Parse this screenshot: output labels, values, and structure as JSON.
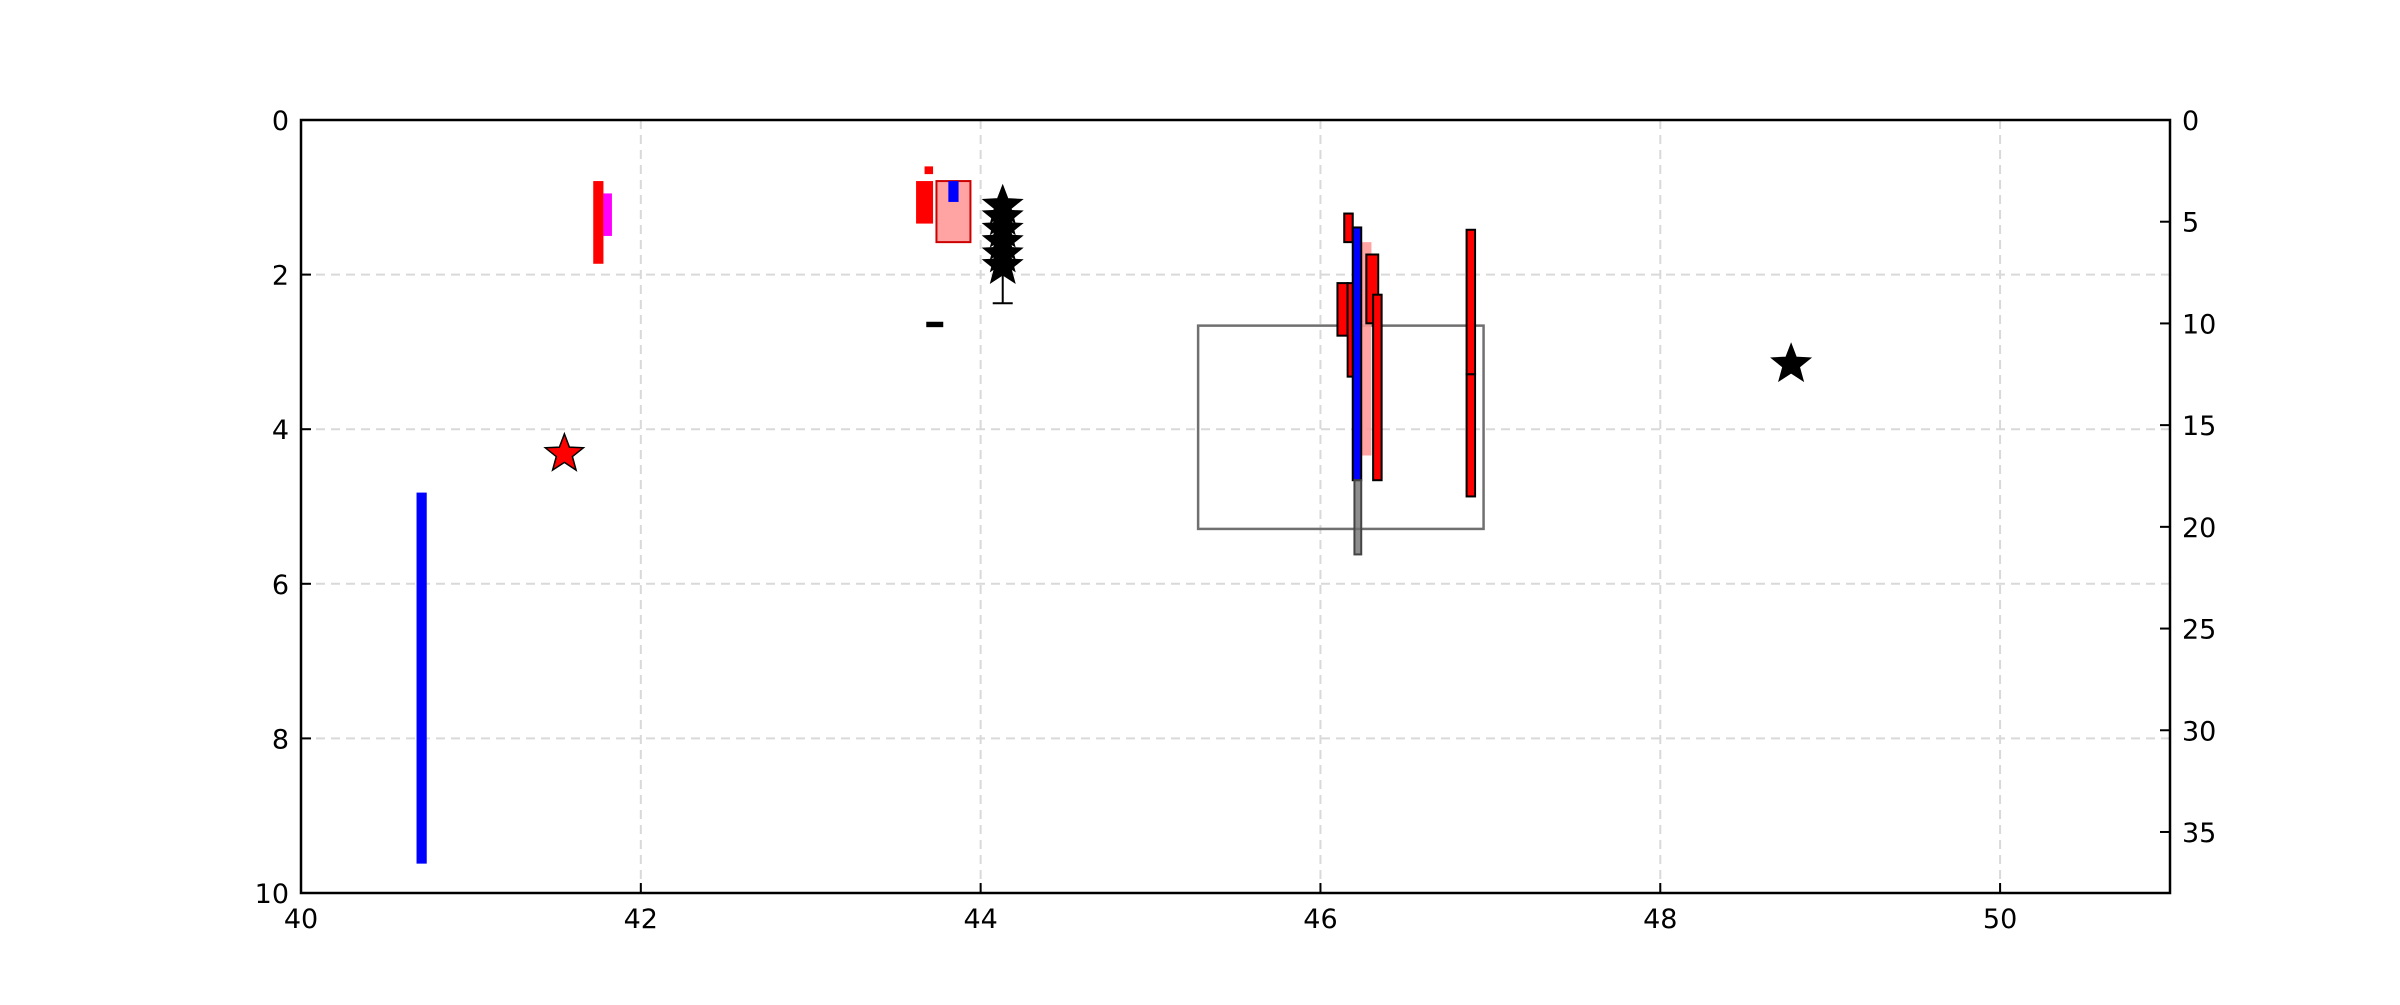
{
  "chart_data": {
    "type": "scatter",
    "title": "",
    "xlabel": "",
    "ylabel": "",
    "y2label": "",
    "xlim": [
      40,
      51
    ],
    "ylim": [
      0,
      10
    ],
    "ylim_right": [
      0,
      38
    ],
    "y_inverted": true,
    "grid": true,
    "x_ticks": [
      "40",
      "42",
      "44",
      "46",
      "48",
      "50"
    ],
    "y_ticks": [
      "0",
      "2",
      "4",
      "6",
      "8",
      "10"
    ],
    "y2_ticks": [
      "0",
      "5",
      "10",
      "15",
      "20",
      "25",
      "30",
      "35"
    ],
    "colors": {
      "red": "#ff0000",
      "blue": "#0000ff",
      "magenta": "#ff00ff",
      "pink": "#ff9999",
      "black": "#000000",
      "grey": "#707070"
    },
    "ranges": [
      {
        "x": 40.68,
        "width": 0.06,
        "y_top": 4.82,
        "y_bottom": 9.62,
        "color": "blue",
        "edge": "none",
        "opacity": 1
      },
      {
        "x": 41.72,
        "width": 0.06,
        "y_top": 0.79,
        "y_bottom": 1.86,
        "color": "red",
        "edge": "none",
        "opacity": 1
      },
      {
        "x": 41.78,
        "width": 0.05,
        "y_top": 0.95,
        "y_bottom": 1.5,
        "color": "magenta",
        "edge": "none",
        "opacity": 1
      },
      {
        "x": 43.67,
        "width": 0.05,
        "y_top": 0.6,
        "y_bottom": 0.7,
        "color": "red",
        "edge": "none",
        "opacity": 1
      },
      {
        "x": 43.62,
        "width": 0.1,
        "y_top": 0.79,
        "y_bottom": 1.34,
        "color": "red",
        "edge": "none",
        "opacity": 1
      },
      {
        "x": 43.74,
        "width": 0.2,
        "y_top": 0.79,
        "y_bottom": 1.58,
        "color": "pink",
        "edge": "#cc0000",
        "opacity": 0.9
      },
      {
        "x": 43.81,
        "width": 0.06,
        "y_top": 0.79,
        "y_bottom": 1.06,
        "color": "blue",
        "edge": "none",
        "opacity": 1
      },
      {
        "x": 43.68,
        "width": 0.1,
        "y_top": 2.61,
        "y_bottom": 2.68,
        "color": "black",
        "edge": "none",
        "opacity": 1
      },
      {
        "x": 46.14,
        "width": 0.05,
        "y_top": 1.21,
        "y_bottom": 1.58,
        "color": "red",
        "edge": "black",
        "opacity": 1
      },
      {
        "x": 46.1,
        "width": 0.06,
        "y_top": 2.11,
        "y_bottom": 2.79,
        "color": "red",
        "edge": "black",
        "opacity": 1
      },
      {
        "x": 46.16,
        "width": 0.05,
        "y_top": 2.11,
        "y_bottom": 3.32,
        "color": "red",
        "edge": "black",
        "opacity": 1
      },
      {
        "x": 46.24,
        "width": 0.06,
        "y_top": 1.58,
        "y_bottom": 4.34,
        "color": "pink",
        "edge": "none",
        "opacity": 0.9
      },
      {
        "x": 46.27,
        "width": 0.07,
        "y_top": 1.74,
        "y_bottom": 2.63,
        "color": "red",
        "edge": "black",
        "opacity": 1
      },
      {
        "x": 46.31,
        "width": 0.05,
        "y_top": 2.26,
        "y_bottom": 4.66,
        "color": "red",
        "edge": "black",
        "opacity": 1
      },
      {
        "x": 46.19,
        "width": 0.05,
        "y_top": 1.39,
        "y_bottom": 4.66,
        "color": "blue",
        "edge": "black",
        "opacity": 1
      },
      {
        "x": 46.2,
        "width": 0.04,
        "y_top": 4.66,
        "y_bottom": 5.62,
        "color": "grey",
        "edge": "#444444",
        "opacity": 0.8
      },
      {
        "x": 46.86,
        "width": 0.05,
        "y_top": 1.42,
        "y_bottom": 3.29,
        "color": "red",
        "edge": "black",
        "opacity": 1
      },
      {
        "x": 46.86,
        "width": 0.05,
        "y_top": 3.29,
        "y_bottom": 4.87,
        "color": "red",
        "edge": "black",
        "opacity": 1
      }
    ],
    "outline_boxes": [
      {
        "x0": 45.28,
        "x1": 46.96,
        "y_top": 2.66,
        "y_bottom": 5.29,
        "color": "grey"
      }
    ],
    "stars": [
      {
        "x": 41.55,
        "y": 4.32,
        "color": "red"
      },
      {
        "x": 48.77,
        "y": 3.16,
        "color": "black"
      },
      {
        "x": 44.13,
        "y": 1.11,
        "color": "black"
      },
      {
        "x": 44.13,
        "y": 1.26,
        "color": "black"
      },
      {
        "x": 44.13,
        "y": 1.42,
        "color": "black"
      },
      {
        "x": 44.13,
        "y": 1.58,
        "color": "black"
      },
      {
        "x": 44.13,
        "y": 1.74,
        "color": "black"
      },
      {
        "x": 44.13,
        "y": 1.89,
        "color": "black"
      }
    ],
    "error_bars": [
      {
        "x": 44.13,
        "y_top": 1.11,
        "y_bottom": 2.37,
        "color": "black"
      }
    ]
  }
}
